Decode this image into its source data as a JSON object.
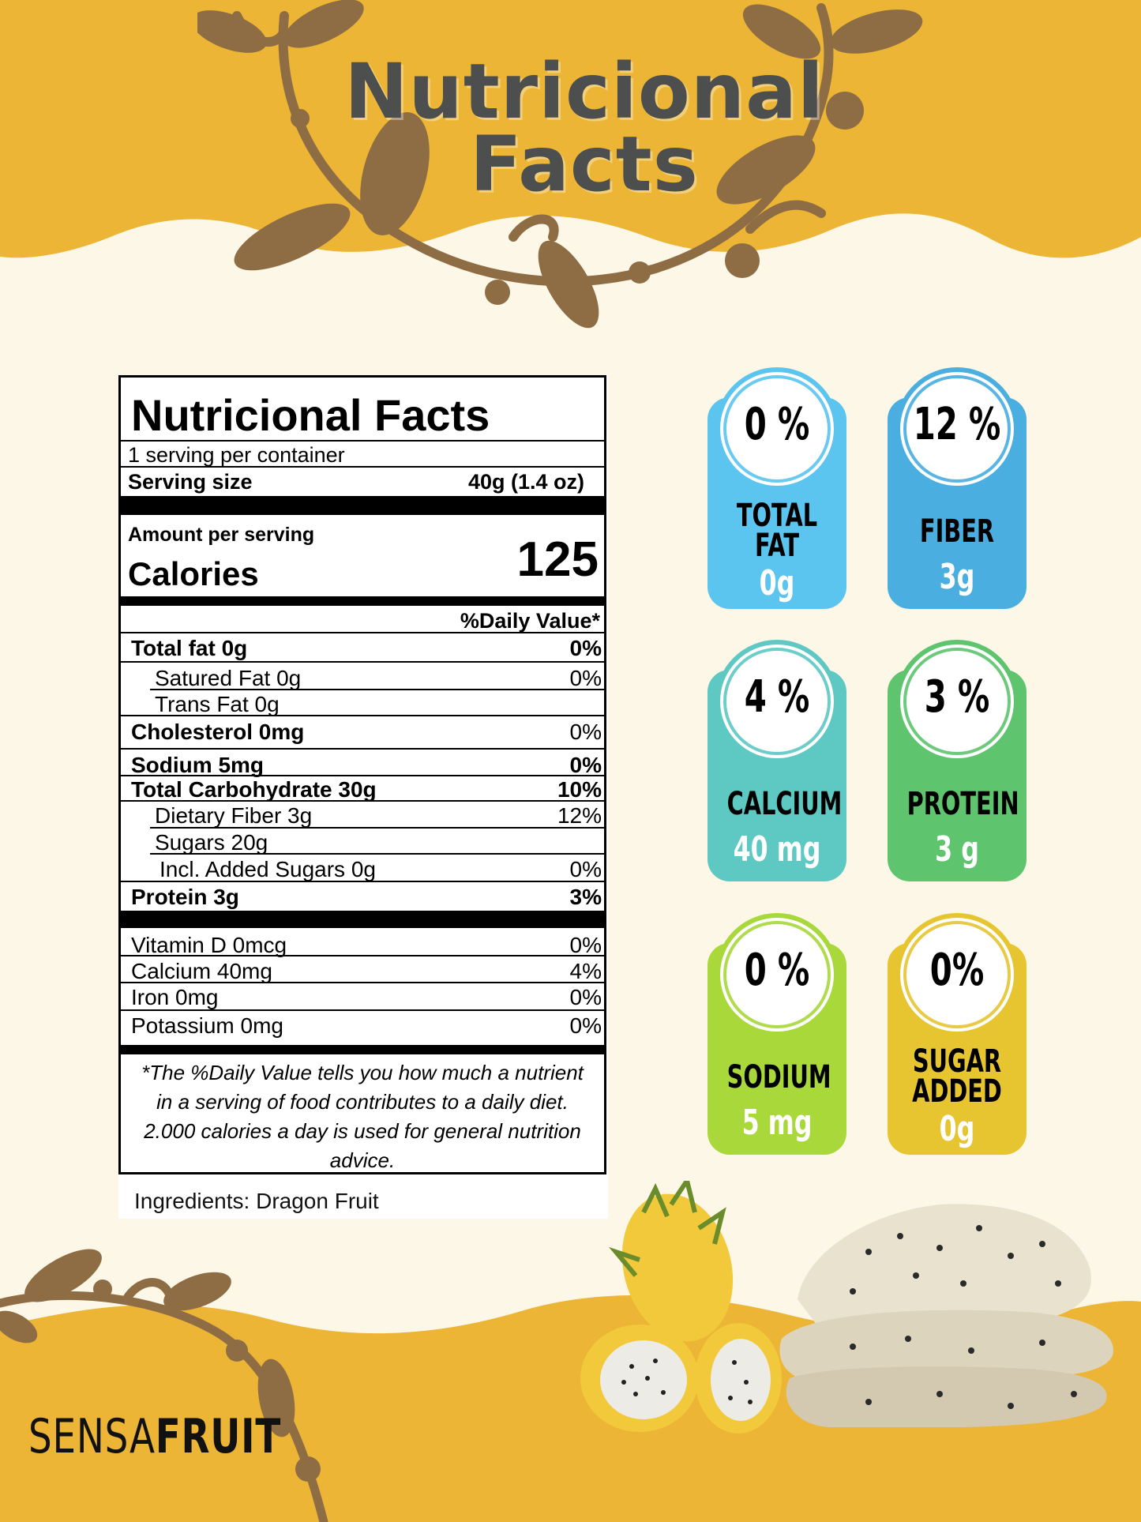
{
  "title": {
    "line1": "Nutricional",
    "line2": "Facts"
  },
  "label": {
    "heading": "Nutricional Facts",
    "servings": "1 serving per container",
    "serving_size_label": "Serving size",
    "serving_size_value": "40g (1.4 oz)",
    "amount_per_serving": "Amount per serving",
    "calories_label": "Calories",
    "calories_value": "125",
    "daily_value_header": "%Daily Value*",
    "rows": [
      {
        "name": "Total fat  0g",
        "value": "0%"
      },
      {
        "name": "Satured Fat  0g",
        "value": "0%"
      },
      {
        "name": "Trans Fat   0g",
        "value": ""
      },
      {
        "name": "Cholesterol   0mg",
        "value": "0%"
      },
      {
        "name": "Sodium    5mg",
        "value": "0%"
      },
      {
        "name": "Total Carbohydrate  30g",
        "value": "10%"
      },
      {
        "name": "Dietary Fiber   3g",
        "value": "12%"
      },
      {
        "name": "Sugars   20g",
        "value": ""
      },
      {
        "name": "Incl. Added Sugars  0g",
        "value": "0%"
      },
      {
        "name": "Protein  3g",
        "value": "3%"
      },
      {
        "name": "Vitamin D  0mcg",
        "value": "0%"
      },
      {
        "name": "Calcium 40mg",
        "value": "4%"
      },
      {
        "name": "Iron 0mg",
        "value": "0%"
      },
      {
        "name": "Potassium 0mg",
        "value": "0%"
      }
    ],
    "footnote": "*The %Daily Value tells you how much a nutrient in a serving of food contributes to a daily diet. 2.000 calories a day is used for general nutrition advice.",
    "ingredients": "Ingredients:  Dragon Fruit"
  },
  "badges": [
    {
      "pct": "0 %",
      "name": [
        "TOTAL",
        "FAT"
      ],
      "amount": "0g",
      "color": "#5bc5ef",
      "ring": "#5bc5ef"
    },
    {
      "pct": "12 %",
      "name": [
        "FIBER"
      ],
      "amount": "3g",
      "color": "#4aaee0",
      "ring": "#4aaee0"
    },
    {
      "pct": "4 %",
      "name": [
        "CALCIUM"
      ],
      "amount": "40 mg",
      "color": "#5ec8c3",
      "ring": "#5ec8c3"
    },
    {
      "pct": "3 %",
      "name": [
        "PROTEIN"
      ],
      "amount": "3 g",
      "color": "#5ec46e",
      "ring": "#5ec46e"
    },
    {
      "pct": "0 %",
      "name": [
        "SODIUM"
      ],
      "amount": "5 mg",
      "color": "#a8d83a",
      "ring": "#a8d83a"
    },
    {
      "pct": "0%",
      "name": [
        "SUGAR",
        "ADDED"
      ],
      "amount": "0g",
      "color": "#e6c530",
      "ring": "#e6c530"
    }
  ],
  "brand": {
    "light": "SENSA",
    "bold": "FRUIT"
  },
  "colors": {
    "band": "#ecb535",
    "cream": "#fcf7e6",
    "vine": "#8e6d45",
    "title": "#4d4f4f"
  }
}
